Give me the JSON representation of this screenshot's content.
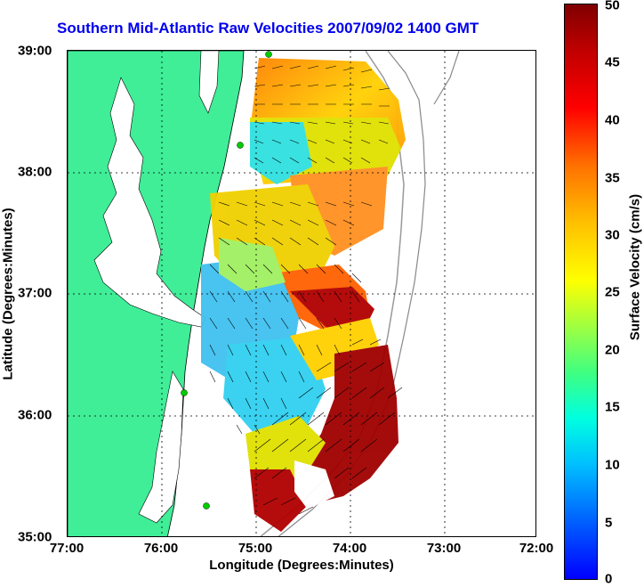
{
  "title": "Southern Mid-Atlantic Raw Velocities 2007/09/02 1400 GMT",
  "xlabel": "Longitude (Degrees:Minutes)",
  "ylabel": "Latitude (Degrees:Minutes)",
  "colorbar_label": "Surface Velocity (cm/s)",
  "x_ticks": [
    "77:00",
    "76:00",
    "75:00",
    "74:00",
    "73:00",
    "72:00"
  ],
  "y_ticks": [
    "39:00",
    "38:00",
    "37:00",
    "36:00",
    "35:00"
  ],
  "colorbar_ticks": [
    "50",
    "45",
    "40",
    "35",
    "30",
    "25",
    "20",
    "15",
    "10",
    "5",
    "0"
  ],
  "map_extent": {
    "lon_range": [
      -77,
      -72
    ],
    "lat_range": [
      35,
      39
    ]
  },
  "colorbar_range": [
    0,
    50
  ],
  "colors": {
    "land": "#40ee98",
    "water": "#ffffff",
    "title": "#0000ee",
    "site": "#00cc00"
  }
}
